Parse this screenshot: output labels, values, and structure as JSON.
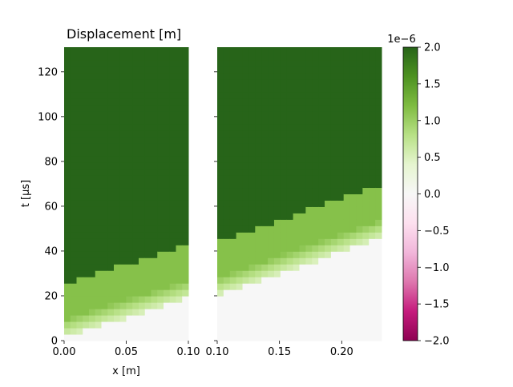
{
  "chart_data": [
    {
      "type": "heatmap",
      "title": "Displacement [m]",
      "xlabel": "x [m]",
      "ylabel": "t [µs]",
      "xlim": [
        0.0,
        0.1
      ],
      "ylim": [
        0,
        131
      ],
      "xticks": [
        0.0,
        0.05,
        0.1
      ],
      "xtick_labels": [
        "0.00",
        "0.05",
        "0.10"
      ],
      "yticks": [
        0,
        20,
        40,
        60,
        80,
        100,
        120
      ],
      "ytick_labels": [
        "0",
        "20",
        "40",
        "60",
        "80",
        "100",
        "120"
      ],
      "grid": false,
      "wave_front": {
        "arrival_time_at_x0": 1.5,
        "arrival_time_at_xmax": 19,
        "rise_time": 8,
        "plateau_start_offset": 24,
        "plateau_value": 2e-06
      }
    },
    {
      "type": "heatmap",
      "title": "",
      "xlabel": "",
      "ylabel": "",
      "xlim": [
        0.1,
        0.232
      ],
      "ylim": [
        0,
        131
      ],
      "xticks": [
        0.1,
        0.15,
        0.2
      ],
      "xtick_labels": [
        "0.10",
        "0.15",
        "0.20"
      ],
      "yticks": [
        0,
        20,
        40,
        60,
        80,
        100,
        120
      ],
      "ytick_labels": [],
      "grid": false,
      "wave_front": {
        "arrival_time_at_x0": 20,
        "arrival_time_at_xmax": 46,
        "rise_time": 8,
        "plateau_start_offset": 24,
        "plateau_value": 2e-06
      }
    }
  ],
  "colorbar": {
    "colormap": "PiYG",
    "vmin": -2.0,
    "vmax": 2.0,
    "ticks": [
      -2.0,
      -1.5,
      -1.0,
      -0.5,
      0.0,
      0.5,
      1.0,
      1.5,
      2.0
    ],
    "tick_labels": [
      "−2.0",
      "−1.5",
      "−1.0",
      "−0.5",
      "0.0",
      "0.5",
      "1.0",
      "1.5",
      "2.0"
    ],
    "offset_label": "1e−6",
    "stops": [
      "#8e0152",
      "#c51b7d",
      "#de77ae",
      "#f1b6da",
      "#fde0ef",
      "#f7f7f7",
      "#e6f5d0",
      "#b8e186",
      "#7fbc41",
      "#4d9221",
      "#276419"
    ]
  }
}
